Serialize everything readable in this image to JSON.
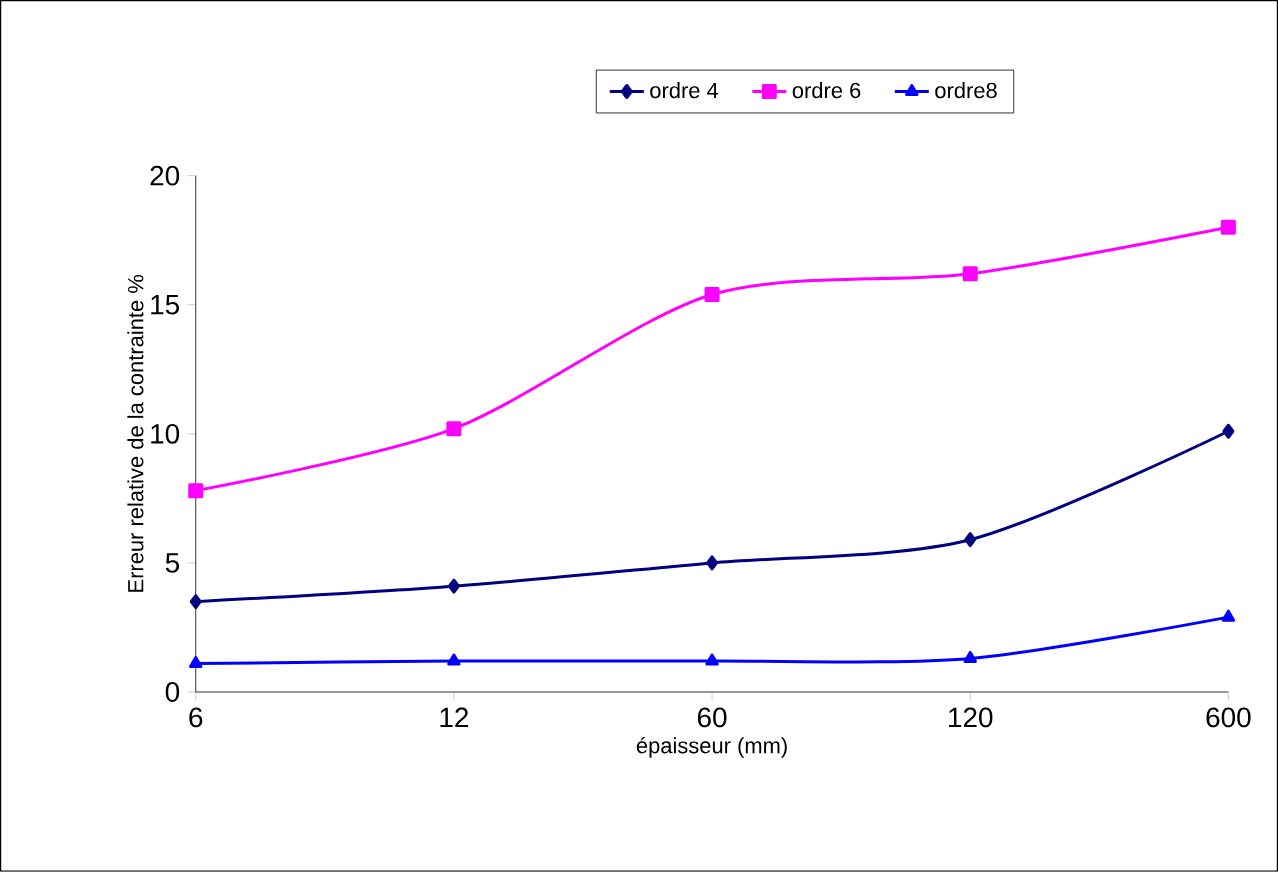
{
  "chart_data": {
    "type": "line",
    "xlabel": "épaisseur (mm)",
    "ylabel": "Erreur relative de la contrainte %",
    "categories": [
      "6",
      "12",
      "60",
      "120",
      "600"
    ],
    "series": [
      {
        "name": "ordre 4",
        "color": "#000080",
        "marker": "diamond",
        "values": [
          3.5,
          4.1,
          5.0,
          5.9,
          10.1
        ]
      },
      {
        "name": "ordre 6",
        "color": "#ff00ff",
        "marker": "square",
        "values": [
          7.8,
          10.2,
          15.4,
          16.2,
          18.0
        ]
      },
      {
        "name": "ordre8",
        "color": "#0000ff",
        "marker": "triangle",
        "values": [
          1.1,
          1.2,
          1.2,
          1.3,
          2.9
        ]
      }
    ],
    "ylim": [
      0,
      20
    ],
    "yticks": [
      0,
      5,
      10,
      15,
      20
    ],
    "grid": false,
    "legend": "top",
    "line_style": "solid"
  }
}
